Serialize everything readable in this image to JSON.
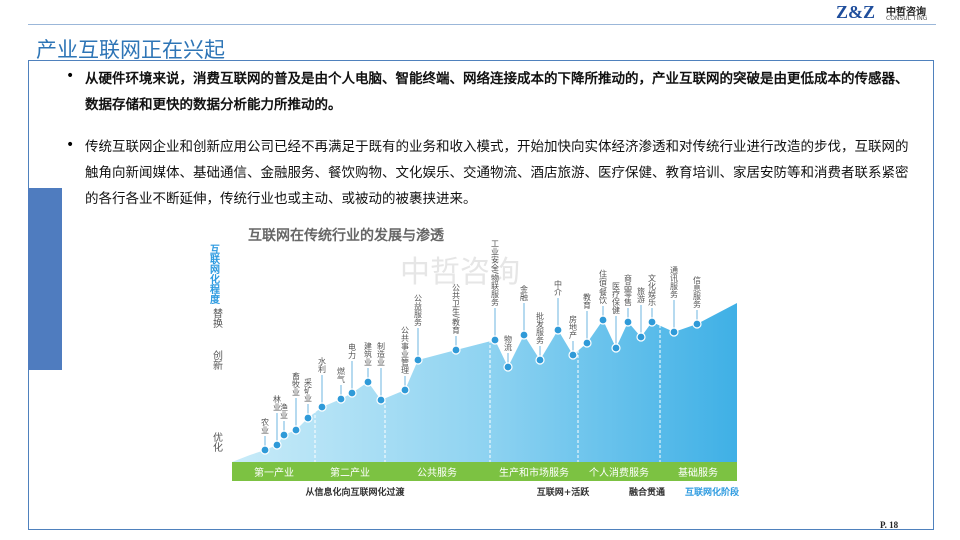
{
  "header": {
    "logo": "Z&Z",
    "company": "中哲咨询",
    "company_en": "CONSUL TING",
    "title": "产业互联网正在兴起"
  },
  "bullets": [
    "从硬件环境来说，消费互联网的普及是由个人电脑、智能终端、网络连接成本的下降所推动的，产业互联网的突破是由更低成本的传感器、数据存储和更快的数据分析能力所推动的。",
    "传统互联网企业和创新应用公司已经不再满足于既有的业务和收入模式，开始加快向实体经济渗透和对传统行业进行改造的步伐，互联网的触角向新闻媒体、基础通信、金融服务、餐饮购物、文化娱乐、交通物流、酒店旅游、医疗保健、教育培训、家居安防等和消费者联系紧密的各行各业不断延伸，传统行业也或主动、或被动的被裹挟进来。"
  ],
  "figure": {
    "title": "互联网在传统行业的发展与渗透",
    "watermark": "中哲咨询",
    "y_axis": "互联网化程度",
    "levels": [
      "替换",
      "创新",
      "优化"
    ],
    "nodes": [
      "农业",
      "林业",
      "渔业",
      "畜牧业",
      "采矿业",
      "水利",
      "燃气",
      "电力",
      "建筑业",
      "制造业",
      "公共事业管理",
      "公益服务",
      "公共卫生/教育",
      "工业安全/物联服务",
      "物流",
      "金融",
      "批发服务",
      "中介",
      "房地产",
      "教育",
      "住宿/餐饮",
      "医疗保健",
      "商品零售",
      "旅游",
      "文化娱乐",
      "通讯服务",
      "信息服务"
    ],
    "stages": [
      "第一产业",
      "第二产业",
      "公共服务",
      "生产和市场服务",
      "个人消费服务",
      "基础服务"
    ],
    "phases": [
      "从信息化向互联网化过渡",
      "互联网+活跃",
      "融合贯通",
      "互联网化阶段"
    ]
  },
  "footer": {
    "page": "P. 18"
  }
}
